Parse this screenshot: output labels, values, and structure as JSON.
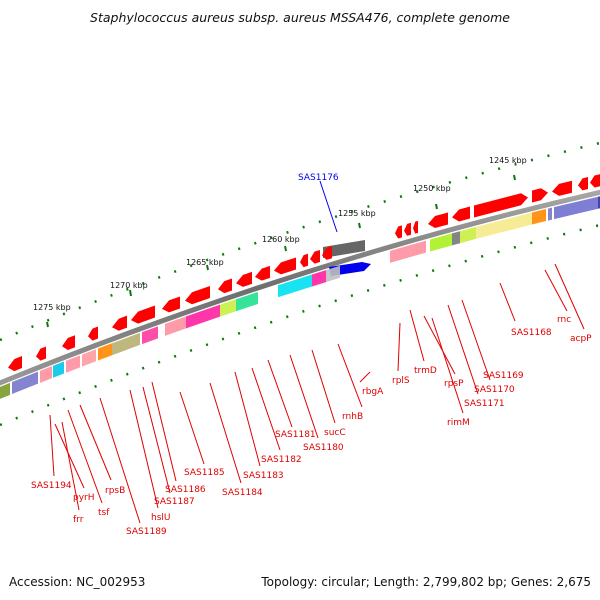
{
  "title": "Staphylococcus aureus subsp. aureus MSSA476, complete genome",
  "accession": "Accession: NC_002953",
  "topology": "Topology: circular; Length: 2,799,802 bp; Genes: 2,675",
  "scale_labels": [
    "1245 kbp",
    "1250 kbp",
    "1255 kbp",
    "1260 kbp",
    "1265 kbp",
    "1270 kbp",
    "1275 kbp"
  ],
  "highlight_gene": "SAS1176",
  "gene_labels": [
    "SAS1194",
    "pyrH",
    "frr",
    "tsf",
    "rpsB",
    "SAS1189",
    "hslU",
    "SAS1187",
    "SAS1186",
    "SAS1185",
    "SAS1184",
    "SAS1183",
    "SAS1182",
    "SAS1181",
    "SAS1180",
    "sucC",
    "rnhB",
    "rbgA",
    "rplS",
    "trmD",
    "rpsP",
    "rimM",
    "SAS1171",
    "SAS1170",
    "SAS1169",
    "SAS1168",
    "rnc",
    "acpP"
  ],
  "colors": {
    "label_red": "#e00000",
    "highlight_blue": "#0000ee",
    "arrow_red": "#ff0000",
    "backbone": "#808080",
    "scale_green": "#117711"
  }
}
